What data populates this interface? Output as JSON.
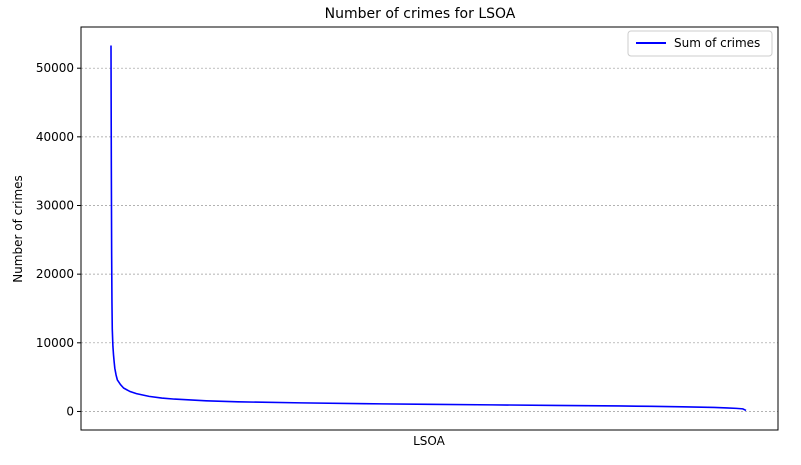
{
  "chart_data": {
    "type": "line",
    "title": "Number of crimes for LSOA",
    "xlabel": "LSOA",
    "ylabel": "Number of crimes",
    "ylim": [
      -2700,
      56000
    ],
    "yticks": [
      0,
      10000,
      20000,
      30000,
      40000,
      50000
    ],
    "grid": "y-dashed",
    "legend_placement": "top-right",
    "x_ticks_shown": false,
    "series": [
      {
        "name": "Sum of crimes",
        "color": "#0000ff",
        "x": [
          0,
          0.5,
          1,
          1.5,
          2,
          3,
          4,
          5,
          6,
          8,
          10,
          15,
          20,
          30,
          40,
          60,
          80,
          100,
          150,
          200,
          300,
          400,
          500,
          600,
          700,
          800,
          850,
          900,
          930,
          950,
          970,
          985,
          995,
          1000
        ],
        "y": [
          53300,
          36000,
          23000,
          16000,
          12000,
          9500,
          8200,
          7200,
          6300,
          5300,
          4600,
          3900,
          3400,
          2900,
          2600,
          2200,
          1950,
          1800,
          1550,
          1400,
          1250,
          1130,
          1040,
          960,
          880,
          800,
          750,
          680,
          630,
          580,
          520,
          450,
          380,
          150
        ]
      }
    ]
  }
}
